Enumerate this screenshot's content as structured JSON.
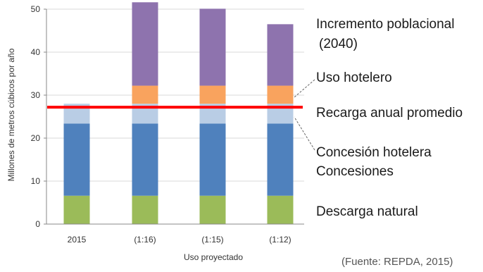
{
  "chart_data": {
    "type": "bar",
    "stacked": true,
    "xlabel": "Uso proyectado",
    "ylabel": "Millones de metros cúbicos por año",
    "ylim": [
      0,
      50
    ],
    "yticks": [
      0,
      10,
      20,
      30,
      40,
      50
    ],
    "categories": [
      "2015",
      "(1:16)",
      "(1:15)",
      "(1:12)"
    ],
    "series": [
      {
        "name": "Descarga natural",
        "color": "#9bbb59",
        "values": [
          6.6,
          6.6,
          6.6,
          6.6
        ]
      },
      {
        "name": "Concesiones",
        "color": "#4f81bd",
        "values": [
          16.8,
          16.8,
          16.8,
          16.8
        ]
      },
      {
        "name": "Concesión hotelera",
        "color": "#b9cde5",
        "values": [
          4.6,
          4.6,
          4.6,
          4.6
        ]
      },
      {
        "name": "Uso hotelero",
        "color": "#f9a35e",
        "values": [
          0,
          4.2,
          4.2,
          4.2
        ]
      },
      {
        "name": "Incremento poblacional\n(2040)",
        "color": "#8e73ae",
        "values": [
          0,
          19.4,
          17.9,
          14.3
        ]
      }
    ],
    "reference_line": {
      "name": "Recarga anual promedio",
      "value": 27.2,
      "color": "#ff0000"
    },
    "grid": true,
    "legend_placement": "right"
  },
  "legend_labels": {
    "incremento_line1": "Incremento poblacional",
    "incremento_line2": "(2040)",
    "uso_hotelero": "Uso hotelero",
    "recarga": "Recarga anual promedio",
    "concesion_hotelera": "Concesión hotelera",
    "concesiones": "Concesiones",
    "descarga": "Descarga natural"
  },
  "source_note": "(Fuente: REPDA, 2015)"
}
